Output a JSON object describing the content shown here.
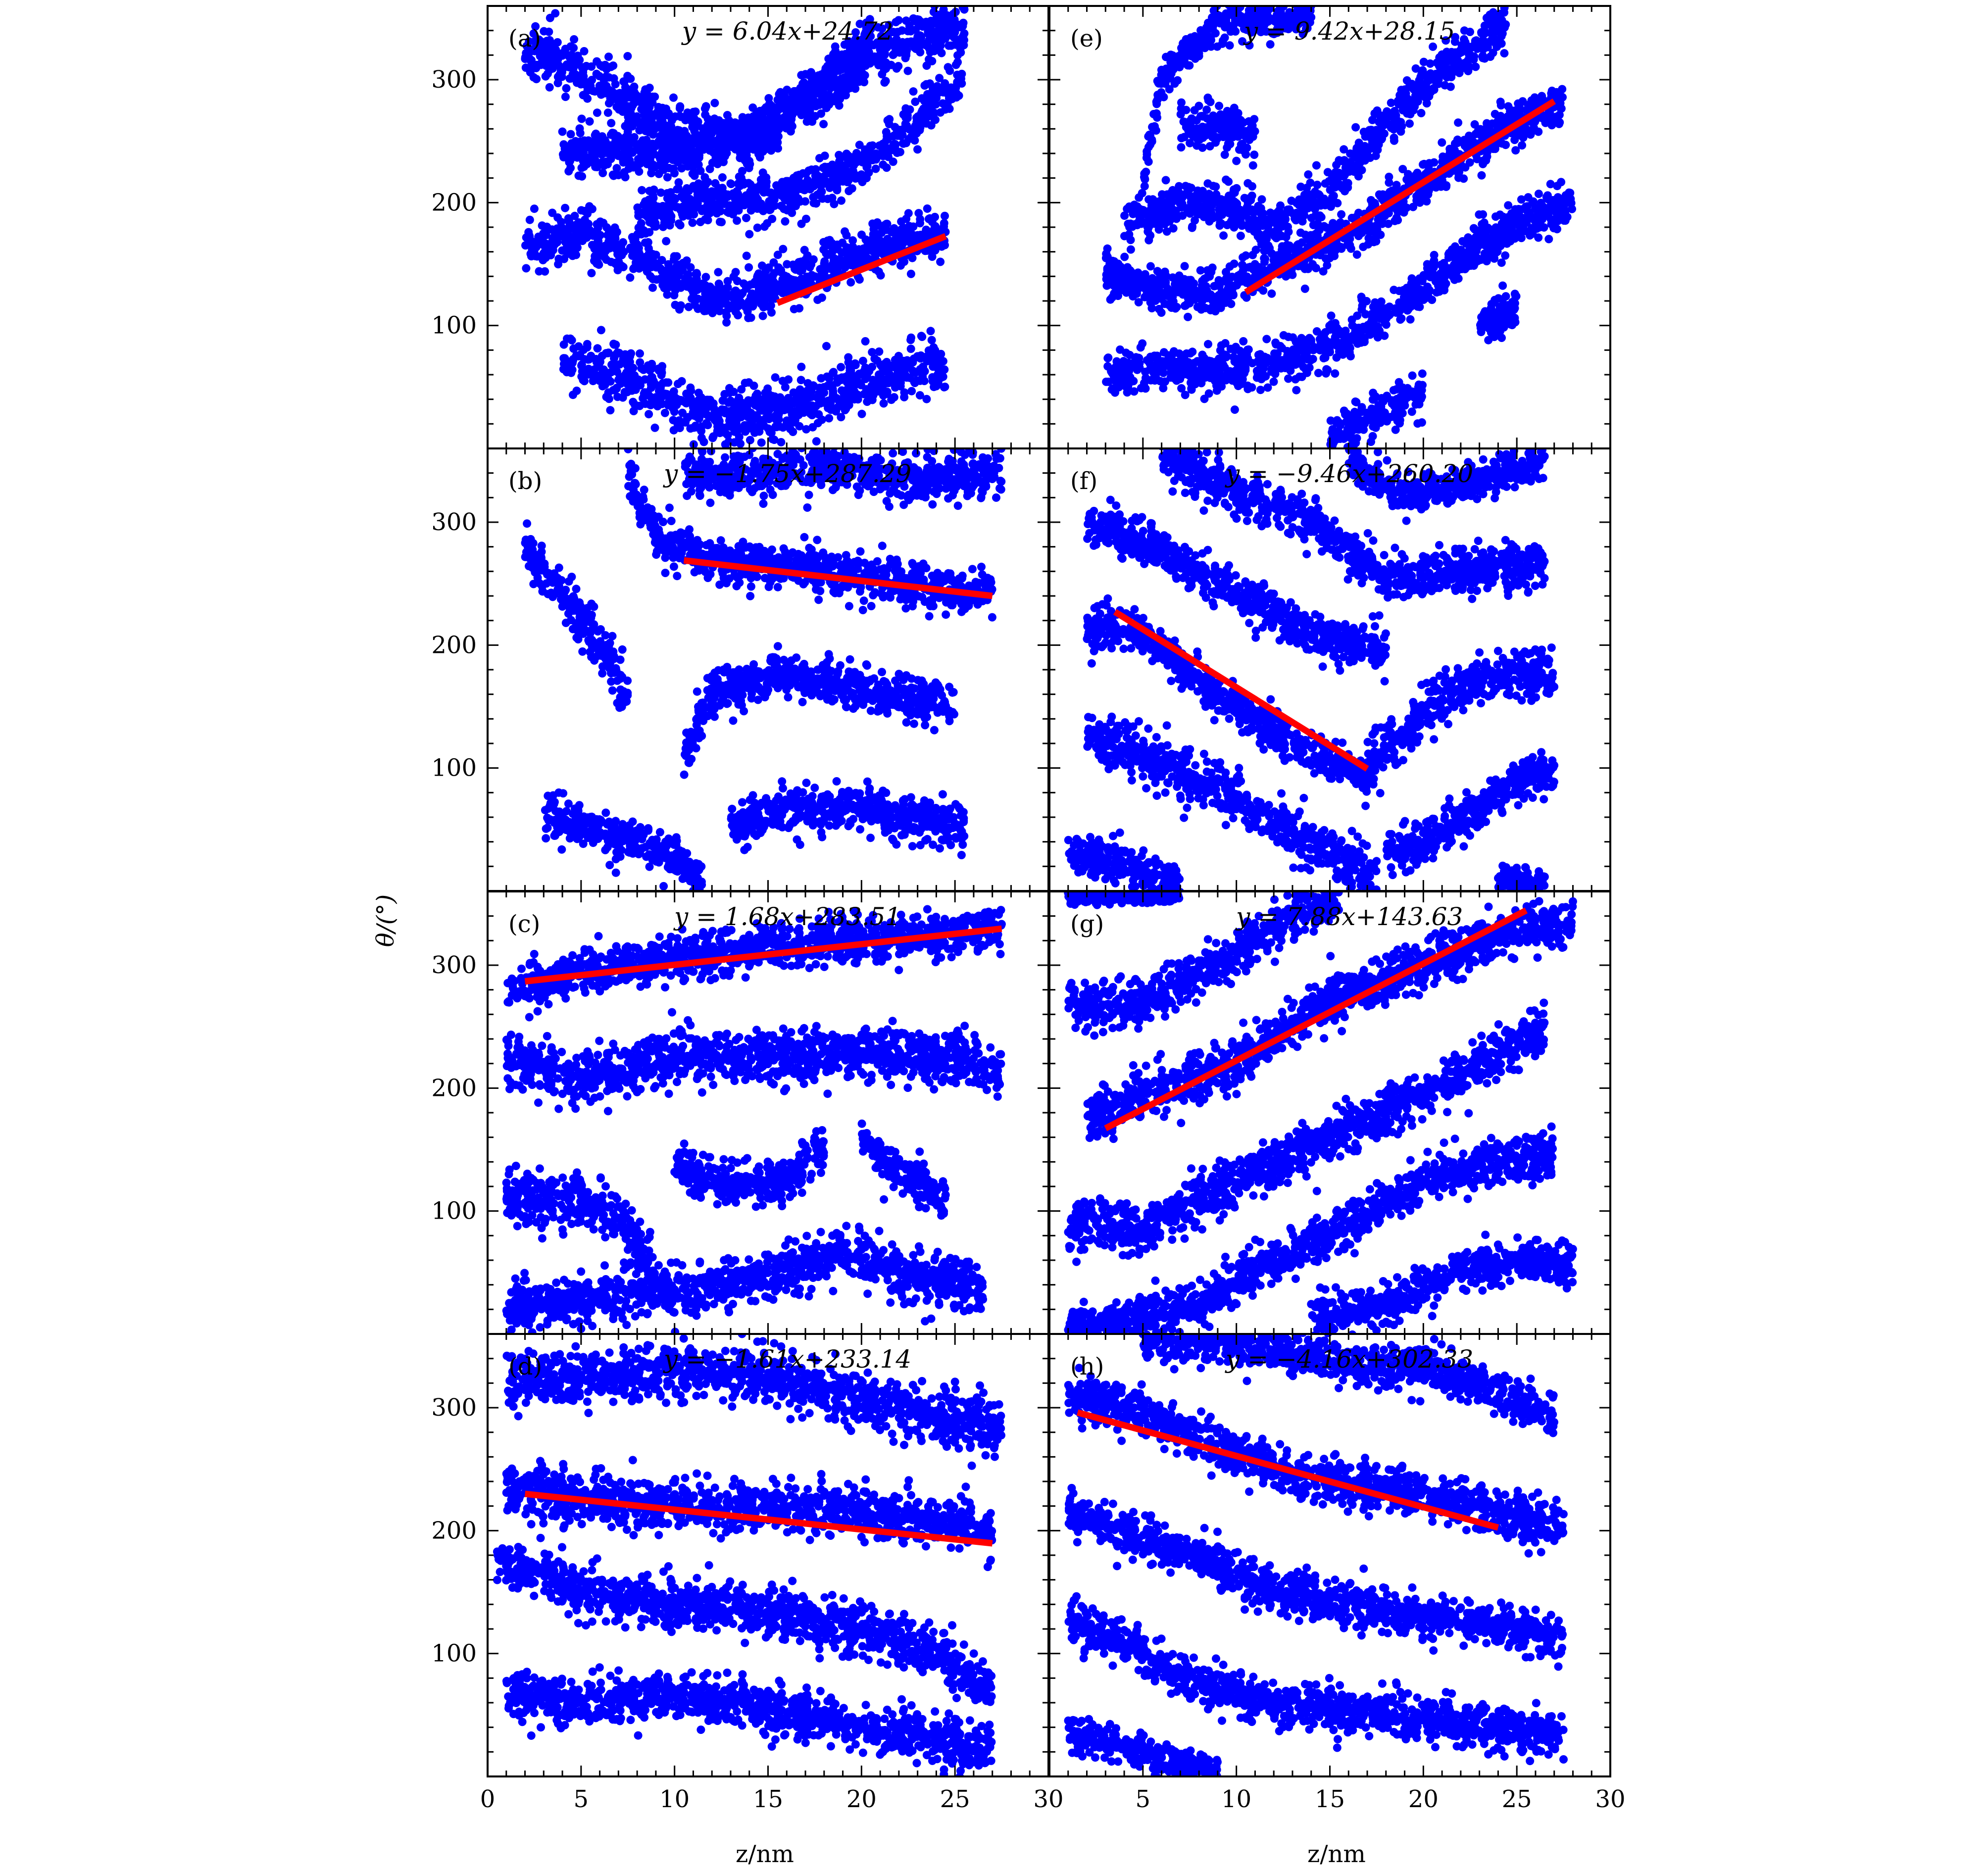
{
  "figure": {
    "y_axis_label": "θ/(°)",
    "x_axis_label": "z/nm"
  },
  "chart_data": [
    {
      "panel": "(a)",
      "equation": "y = 6.04x+24.72",
      "type": "scatter",
      "xlim": [
        0,
        30
      ],
      "ylim": [
        0,
        360
      ],
      "yticks": [
        100,
        200,
        300
      ],
      "xticks": [],
      "fit": {
        "slope": 6.04,
        "intercept": 24.72,
        "x_range": [
          15.5,
          24.5
        ]
      },
      "seed": 11,
      "branches": [
        {
          "x": [
            2,
            6,
            10,
            14,
            18,
            22,
            25.5
          ],
          "y": [
            325,
            300,
            260,
            250,
            290,
            330,
            345
          ],
          "spread": 20
        },
        {
          "x": [
            4,
            6,
            10,
            14,
            18,
            20.5
          ],
          "y": [
            240,
            245,
            240,
            255,
            300,
            335
          ],
          "spread": 16
        },
        {
          "x": [
            8,
            12,
            16,
            20,
            23,
            25.5
          ],
          "y": [
            190,
            200,
            205,
            230,
            270,
            300
          ],
          "spread": 16
        },
        {
          "x": [
            2,
            5,
            9,
            12,
            16,
            20,
            24.5
          ],
          "y": [
            160,
            175,
            150,
            120,
            135,
            160,
            175
          ],
          "spread": 18
        },
        {
          "x": [
            4,
            8,
            12,
            16,
            20,
            24.5
          ],
          "y": [
            70,
            55,
            25,
            30,
            55,
            70
          ],
          "spread": 20
        }
      ]
    },
    {
      "panel": "(b)",
      "equation": "y = −1.75x+287.29",
      "type": "scatter",
      "xlim": [
        0,
        30
      ],
      "ylim": [
        0,
        360
      ],
      "yticks": [
        100,
        200,
        300
      ],
      "xticks": [],
      "fit": {
        "slope": -1.75,
        "intercept": 287.29,
        "x_range": [
          10.5,
          27
        ]
      },
      "seed": 23,
      "branches": [
        {
          "x": [
            10.5,
            14,
            18,
            22,
            27.5
          ],
          "y": [
            340,
            340,
            345,
            335,
            340
          ],
          "spread": 16
        },
        {
          "x": [
            2,
            4,
            6,
            7.5
          ],
          "y": [
            280,
            240,
            200,
            160
          ],
          "spread": 20
        },
        {
          "x": [
            7.5,
            9,
            12,
            16,
            20,
            24,
            27
          ],
          "y": [
            340,
            290,
            270,
            265,
            255,
            245,
            240
          ],
          "spread": 16
        },
        {
          "x": [
            10.5,
            12,
            15,
            18,
            21,
            25
          ],
          "y": [
            110,
            160,
            175,
            170,
            160,
            150
          ],
          "spread": 16
        },
        {
          "x": [
            13,
            16,
            19,
            22,
            25.5
          ],
          "y": [
            55,
            65,
            70,
            60,
            55
          ],
          "spread": 16
        },
        {
          "x": [
            3,
            6,
            9,
            11.5
          ],
          "y": [
            60,
            50,
            35,
            10
          ],
          "spread": 16
        }
      ]
    },
    {
      "panel": "(c)",
      "equation": "y = 1.68x+283.51",
      "type": "scatter",
      "xlim": [
        0,
        30
      ],
      "ylim": [
        0,
        360
      ],
      "yticks": [
        100,
        200,
        300
      ],
      "xticks": [],
      "fit": {
        "slope": 1.68,
        "intercept": 283.51,
        "x_range": [
          2,
          27.5
        ]
      },
      "seed": 37,
      "branches": [
        {
          "x": [
            1,
            5,
            10,
            15,
            20,
            25,
            27.5
          ],
          "y": [
            275,
            295,
            305,
            315,
            320,
            325,
            330
          ],
          "spread": 16
        },
        {
          "x": [
            1,
            5,
            10,
            15,
            20,
            25,
            27.5
          ],
          "y": [
            225,
            205,
            225,
            225,
            230,
            225,
            210
          ],
          "spread": 20
        },
        {
          "x": [
            10,
            13,
            16,
            18
          ],
          "y": [
            140,
            120,
            125,
            150
          ],
          "spread": 16
        },
        {
          "x": [
            1,
            4,
            7,
            9
          ],
          "y": [
            110,
            110,
            95,
            55
          ],
          "spread": 20
        },
        {
          "x": [
            20,
            22,
            24.5
          ],
          "y": [
            160,
            130,
            110
          ],
          "spread": 16
        },
        {
          "x": [
            1,
            5,
            10,
            15,
            19,
            23,
            26.5
          ],
          "y": [
            20,
            30,
            35,
            45,
            65,
            45,
            35
          ],
          "spread": 18
        }
      ]
    },
    {
      "panel": "(d)",
      "equation": "y = −1.61x+233.14",
      "type": "scatter",
      "xlim": [
        0,
        30
      ],
      "ylim": [
        0,
        360
      ],
      "yticks": [
        100,
        200,
        300
      ],
      "xticks": [
        0,
        5,
        10,
        15,
        20,
        25,
        30
      ],
      "fit": {
        "slope": -1.61,
        "intercept": 233.14,
        "x_range": [
          2,
          27
        ]
      },
      "seed": 41,
      "branches": [
        {
          "x": [
            1,
            5,
            10,
            15,
            20,
            25,
            27.5
          ],
          "y": [
            320,
            325,
            330,
            325,
            305,
            290,
            285
          ],
          "spread": 20
        },
        {
          "x": [
            1,
            5,
            10,
            15,
            20,
            25,
            27
          ],
          "y": [
            235,
            225,
            220,
            220,
            215,
            205,
            200
          ],
          "spread": 18
        },
        {
          "x": [
            0.5,
            5,
            10,
            15,
            20,
            24,
            27
          ],
          "y": [
            175,
            150,
            140,
            135,
            120,
            100,
            70
          ],
          "spread": 18
        },
        {
          "x": [
            1,
            5,
            10,
            15,
            20,
            24,
            27
          ],
          "y": [
            70,
            60,
            65,
            55,
            40,
            30,
            20
          ],
          "spread": 18
        }
      ]
    },
    {
      "panel": "(e)",
      "equation": "y = 9.42x+28.15",
      "type": "scatter",
      "xlim": [
        0,
        30
      ],
      "ylim": [
        0,
        360
      ],
      "yticks": [
        100,
        200,
        300
      ],
      "xticks": [],
      "fit": {
        "slope": 9.42,
        "intercept": 28.15,
        "x_range": [
          10.5,
          27
        ]
      },
      "seed": 53,
      "branches": [
        {
          "x": [
            5,
            6,
            9,
            14
          ],
          "y": [
            220,
            300,
            345,
            355
          ],
          "spread": 14
        },
        {
          "x": [
            7,
            9,
            11
          ],
          "y": [
            260,
            265,
            255
          ],
          "spread": 18
        },
        {
          "x": [
            4,
            7,
            10,
            12,
            15,
            18,
            21,
            24.5
          ],
          "y": [
            180,
            200,
            195,
            180,
            210,
            265,
            310,
            345
          ],
          "spread": 16
        },
        {
          "x": [
            3,
            6,
            9,
            12,
            16,
            20,
            24,
            27.5
          ],
          "y": [
            140,
            130,
            125,
            150,
            175,
            215,
            260,
            280
          ],
          "spread": 16
        },
        {
          "x": [
            3,
            6,
            10,
            13,
            16,
            20,
            24,
            28
          ],
          "y": [
            60,
            65,
            65,
            75,
            90,
            130,
            175,
            200
          ],
          "spread": 16
        },
        {
          "x": [
            23,
            25
          ],
          "y": [
            100,
            110
          ],
          "spread": 18
        },
        {
          "x": [
            15,
            17.5,
            20
          ],
          "y": [
            5,
            30,
            45
          ],
          "spread": 16
        }
      ]
    },
    {
      "panel": "(f)",
      "equation": "y = −9.46x+260.20",
      "type": "scatter",
      "xlim": [
        0,
        30
      ],
      "ylim": [
        0,
        360
      ],
      "yticks": [
        100,
        200,
        300
      ],
      "xticks": [],
      "fit": {
        "slope": -9.46,
        "intercept": 260.2,
        "x_range": [
          3.5,
          17
        ]
      },
      "seed": 67,
      "branches": [
        {
          "x": [
            6,
            10,
            14,
            18,
            22,
            26.5
          ],
          "y": [
            355,
            325,
            300,
            255,
            260,
            265
          ],
          "spread": 16
        },
        {
          "x": [
            16,
            19,
            22,
            26.5
          ],
          "y": [
            350,
            320,
            330,
            350
          ],
          "spread": 14
        },
        {
          "x": [
            2,
            6,
            10,
            14,
            18
          ],
          "y": [
            300,
            275,
            245,
            210,
            195
          ],
          "spread": 16
        },
        {
          "x": [
            2,
            5,
            9,
            13,
            17
          ],
          "y": [
            215,
            210,
            160,
            120,
            90
          ],
          "spread": 16
        },
        {
          "x": [
            17,
            20,
            23,
            27
          ],
          "y": [
            100,
            145,
            175,
            180
          ],
          "spread": 18
        },
        {
          "x": [
            2,
            6,
            10,
            14,
            17.5
          ],
          "y": [
            125,
            105,
            75,
            40,
            10
          ],
          "spread": 18
        },
        {
          "x": [
            18,
            22,
            25,
            27
          ],
          "y": [
            30,
            55,
            90,
            95
          ],
          "spread": 16
        },
        {
          "x": [
            1,
            4,
            7
          ],
          "y": [
            30,
            20,
            5
          ],
          "spread": 16
        },
        {
          "x": [
            24,
            26.5
          ],
          "y": [
            10,
            5
          ],
          "spread": 10
        }
      ]
    },
    {
      "panel": "(g)",
      "equation": "y = 7.88x+143.63",
      "type": "scatter",
      "xlim": [
        0,
        30
      ],
      "ylim": [
        0,
        360
      ],
      "yticks": [
        100,
        200,
        300
      ],
      "xticks": [],
      "fit": {
        "slope": 7.88,
        "intercept": 143.63,
        "x_range": [
          3,
          25.5
        ]
      },
      "seed": 71,
      "branches": [
        {
          "x": [
            1,
            3,
            5,
            7
          ],
          "y": [
            355,
            355,
            355,
            355
          ],
          "spread": 4
        },
        {
          "x": [
            1,
            4,
            7,
            10,
            12.5,
            15.5
          ],
          "y": [
            270,
            265,
            285,
            310,
            335,
            355
          ],
          "spread": 16
        },
        {
          "x": [
            2,
            5,
            10,
            15,
            20,
            25,
            28
          ],
          "y": [
            175,
            195,
            220,
            270,
            300,
            330,
            335
          ],
          "spread": 18
        },
        {
          "x": [
            1,
            5,
            10,
            15,
            20,
            25,
            26.5
          ],
          "y": [
            90,
            85,
            125,
            160,
            195,
            235,
            250
          ],
          "spread": 18
        },
        {
          "x": [
            1,
            4,
            8,
            12,
            16,
            20,
            24,
            27
          ],
          "y": [
            5,
            10,
            25,
            60,
            90,
            125,
            140,
            145
          ],
          "spread": 16
        },
        {
          "x": [
            14,
            18,
            22,
            25,
            28
          ],
          "y": [
            10,
            25,
            50,
            60,
            55
          ],
          "spread": 16
        }
      ]
    },
    {
      "panel": "(h)",
      "equation": "y = −4.16x+302.33",
      "type": "scatter",
      "xlim": [
        0,
        30
      ],
      "ylim": [
        0,
        360
      ],
      "yticks": [
        100,
        200,
        300
      ],
      "xticks": [
        0,
        5,
        10,
        15,
        20,
        25,
        30
      ],
      "fit": {
        "slope": -4.16,
        "intercept": 302.33,
        "x_range": [
          1.5,
          24
        ]
      },
      "seed": 83,
      "branches": [
        {
          "x": [
            5,
            9,
            13,
            17,
            21,
            25,
            27
          ],
          "y": [
            355,
            355,
            345,
            335,
            330,
            305,
            295
          ],
          "spread": 16
        },
        {
          "x": [
            1,
            5,
            9,
            13,
            17,
            21,
            25,
            27.5
          ],
          "y": [
            310,
            295,
            270,
            245,
            235,
            225,
            210,
            205
          ],
          "spread": 16
        },
        {
          "x": [
            1,
            5,
            9,
            12,
            16,
            20,
            24,
            27.5
          ],
          "y": [
            215,
            195,
            170,
            150,
            140,
            130,
            125,
            110
          ],
          "spread": 16
        },
        {
          "x": [
            1,
            4,
            7,
            11,
            15,
            19,
            23,
            27.5
          ],
          "y": [
            125,
            110,
            80,
            60,
            55,
            50,
            40,
            35
          ],
          "spread": 16
        },
        {
          "x": [
            1,
            4,
            7,
            9
          ],
          "y": [
            35,
            25,
            10,
            5
          ],
          "spread": 12
        }
      ]
    }
  ]
}
